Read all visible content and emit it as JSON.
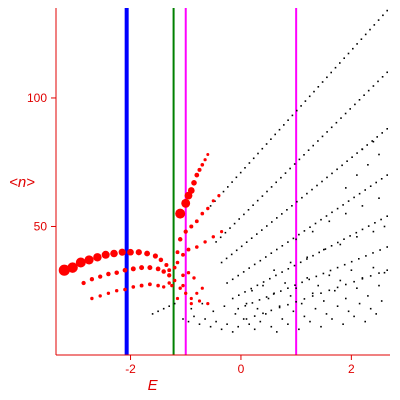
{
  "chart_data": {
    "type": "scatter",
    "title": "",
    "xlabel": "E",
    "ylabel": "<n>",
    "xlim": [
      -3.35,
      2.7
    ],
    "ylim": [
      0,
      135
    ],
    "x_ticks": [
      -2,
      0,
      2
    ],
    "x_tick_labels": [
      "-2",
      "0",
      "2"
    ],
    "y_ticks": [
      50,
      100
    ],
    "y_tick_labels": [
      "50",
      "100"
    ],
    "grid": false,
    "legend": "none",
    "colors": {
      "axes": "#e00000",
      "red_series": "#ff0000",
      "black_series": "#000000"
    },
    "vertical_lines": [
      {
        "x": -2.07,
        "color": "#0000ff"
      },
      {
        "x": -1.22,
        "color": "#008000"
      },
      {
        "x": -1.0,
        "color": "#ff00ff"
      },
      {
        "x": 1.0,
        "color": "#ff00ff"
      }
    ],
    "series": [
      {
        "color": "#ff0000",
        "marker": "circle",
        "points": [
          [
            -3.2,
            33,
            4.5
          ],
          [
            -3.05,
            34,
            4.2
          ],
          [
            -2.9,
            36,
            4.0
          ],
          [
            -2.75,
            37,
            3.6
          ],
          [
            -2.6,
            38,
            3.3
          ],
          [
            -2.45,
            39,
            3.1
          ],
          [
            -2.3,
            39.5,
            2.9
          ],
          [
            -2.15,
            40,
            2.7
          ],
          [
            -2.0,
            40,
            2.5
          ],
          [
            -1.85,
            40,
            2.3
          ],
          [
            -1.7,
            39.5,
            2.1
          ],
          [
            -1.55,
            38.5,
            1.8
          ],
          [
            -1.45,
            37,
            1.5
          ],
          [
            -1.35,
            35,
            1.3
          ],
          [
            -1.3,
            33,
            1.2
          ],
          [
            -2.85,
            28,
            1.4
          ],
          [
            -2.7,
            29.5,
            1.4
          ],
          [
            -2.55,
            30.5,
            1.4
          ],
          [
            -2.4,
            31.5,
            1.5
          ],
          [
            -2.25,
            32,
            1.5
          ],
          [
            -2.1,
            33,
            1.6
          ],
          [
            -1.95,
            33.5,
            1.7
          ],
          [
            -1.8,
            34,
            1.7
          ],
          [
            -1.65,
            34,
            1.7
          ],
          [
            -1.5,
            33.5,
            1.6
          ],
          [
            -1.4,
            32.5,
            1.5
          ],
          [
            -1.3,
            31,
            1.4
          ],
          [
            -2.7,
            22,
            1.0
          ],
          [
            -2.55,
            23,
            1.0
          ],
          [
            -2.4,
            24,
            1.0
          ],
          [
            -2.25,
            25,
            1.0
          ],
          [
            -2.1,
            25.5,
            1.1
          ],
          [
            -1.95,
            26.5,
            1.1
          ],
          [
            -1.8,
            27,
            1.2
          ],
          [
            -1.65,
            27.5,
            1.2
          ],
          [
            -1.5,
            27,
            1.1
          ],
          [
            -1.4,
            26.5,
            1.0
          ],
          [
            -1.1,
            55,
            4.0
          ],
          [
            -1.0,
            59,
            3.5
          ],
          [
            -0.95,
            62,
            3.0
          ],
          [
            -0.9,
            64,
            2.5
          ],
          [
            -0.85,
            67,
            2.0
          ],
          [
            -0.8,
            70,
            1.6
          ],
          [
            -0.75,
            72,
            1.3
          ],
          [
            -0.7,
            74,
            1.1
          ],
          [
            -0.65,
            76,
            0.9
          ],
          [
            -0.6,
            78,
            0.8
          ],
          [
            -1.1,
            45,
            1.5
          ],
          [
            -1.0,
            48,
            1.4
          ],
          [
            -0.9,
            50,
            1.3
          ],
          [
            -0.8,
            52,
            1.2
          ],
          [
            -0.7,
            55,
            1.1
          ],
          [
            -0.6,
            57,
            1.0
          ],
          [
            -0.5,
            60,
            0.9
          ],
          [
            -0.4,
            62,
            0.9
          ],
          [
            -1.05,
            39,
            1.2
          ],
          [
            -0.95,
            41,
            1.2
          ],
          [
            -0.8,
            42,
            1.1
          ],
          [
            -0.65,
            44,
            1.0
          ],
          [
            -0.5,
            46,
            1.0
          ],
          [
            -0.35,
            48,
            0.9
          ],
          [
            -1.15,
            40,
            1.2
          ],
          [
            -1.15,
            36,
            1.1
          ],
          [
            -1.2,
            34,
            1.1
          ],
          [
            -1.1,
            26,
            1.0
          ],
          [
            -1.0,
            24,
            1.0
          ],
          [
            -0.9,
            22,
            0.9
          ],
          [
            -0.8,
            24,
            0.9
          ],
          [
            -0.7,
            26,
            0.9
          ],
          [
            -0.95,
            32,
            1.0
          ],
          [
            -0.85,
            30,
            1.0
          ],
          [
            -1.05,
            31,
            1.1
          ],
          [
            -0.9,
            20,
            0.9
          ],
          [
            -0.75,
            21,
            0.9
          ],
          [
            -0.6,
            20,
            0.9
          ],
          [
            -1.05,
            27,
            1.0
          ],
          [
            -1.3,
            28,
            1.0
          ],
          [
            -1.25,
            27,
            1.0
          ],
          [
            -1.2,
            29,
            1.0
          ],
          [
            -1.15,
            22,
            0.9
          ]
        ]
      },
      {
        "color": "#000000",
        "marker": "dot",
        "families": [
          {
            "x_start": -0.55,
            "x_end": 2.65,
            "y_start": 58,
            "y_end": 134,
            "n": 42
          },
          {
            "x_start": -0.45,
            "x_end": 2.65,
            "y_start": 44,
            "y_end": 110,
            "n": 38
          },
          {
            "x_start": -0.35,
            "x_end": 2.65,
            "y_start": 36,
            "y_end": 88,
            "n": 34
          },
          {
            "x_start": -0.25,
            "x_end": 2.65,
            "y_start": 28,
            "y_end": 70,
            "n": 30
          },
          {
            "x_start": -0.15,
            "x_end": 2.65,
            "y_start": 22,
            "y_end": 54,
            "n": 26
          },
          {
            "x_start": -0.05,
            "x_end": 2.65,
            "y_start": 18,
            "y_end": 42,
            "n": 22
          },
          {
            "x_start": 0.1,
            "x_end": 2.65,
            "y_start": 14,
            "y_end": 33,
            "n": 18
          }
        ],
        "points": [
          [
            -1.6,
            16
          ],
          [
            -1.5,
            17
          ],
          [
            -1.4,
            18
          ],
          [
            -1.3,
            19
          ],
          [
            -1.2,
            20
          ],
          [
            -1.05,
            14
          ],
          [
            -0.95,
            13
          ],
          [
            -0.85,
            15
          ],
          [
            -0.75,
            12
          ],
          [
            -0.65,
            14
          ],
          [
            -0.55,
            11
          ],
          [
            -0.45,
            13
          ],
          [
            -0.35,
            10
          ],
          [
            -0.25,
            12
          ],
          [
            -0.15,
            9
          ],
          [
            -0.05,
            11
          ],
          [
            0.05,
            14
          ],
          [
            0.15,
            12
          ],
          [
            0.25,
            10
          ],
          [
            0.35,
            13
          ],
          [
            0.45,
            16
          ],
          [
            0.55,
            11
          ],
          [
            0.65,
            9
          ],
          [
            0.75,
            14
          ],
          [
            0.85,
            12
          ],
          [
            0.95,
            17
          ],
          [
            1.05,
            10
          ],
          [
            1.15,
            15
          ],
          [
            1.25,
            13
          ],
          [
            1.35,
            18
          ],
          [
            1.45,
            11
          ],
          [
            1.55,
            16
          ],
          [
            1.65,
            14
          ],
          [
            1.75,
            19
          ],
          [
            1.85,
            12
          ],
          [
            1.95,
            17
          ],
          [
            2.05,
            15
          ],
          [
            2.15,
            20
          ],
          [
            2.25,
            13
          ],
          [
            2.35,
            18
          ],
          [
            2.45,
            16
          ],
          [
            2.55,
            21
          ],
          [
            -0.9,
            18
          ],
          [
            -0.7,
            20
          ],
          [
            -0.5,
            17
          ],
          [
            -0.3,
            19
          ],
          [
            -0.1,
            16
          ],
          [
            0.1,
            20
          ],
          [
            0.3,
            18
          ],
          [
            0.5,
            22
          ],
          [
            0.7,
            19
          ],
          [
            0.9,
            23
          ],
          [
            1.1,
            20
          ],
          [
            1.3,
            24
          ],
          [
            1.5,
            21
          ],
          [
            1.7,
            25
          ],
          [
            1.9,
            22
          ],
          [
            2.1,
            26
          ],
          [
            2.3,
            23
          ],
          [
            2.5,
            27
          ],
          [
            0.2,
            25
          ],
          [
            0.4,
            27
          ],
          [
            0.6,
            24
          ],
          [
            0.8,
            28
          ],
          [
            1.0,
            26
          ],
          [
            1.2,
            30
          ],
          [
            1.4,
            27
          ],
          [
            1.6,
            31
          ],
          [
            1.8,
            29
          ],
          [
            2.0,
            33
          ],
          [
            2.2,
            30
          ],
          [
            2.4,
            34
          ],
          [
            2.6,
            32
          ],
          [
            0.6,
            33
          ],
          [
            0.9,
            36
          ],
          [
            1.2,
            38
          ],
          [
            1.5,
            41
          ],
          [
            1.8,
            43
          ],
          [
            2.1,
            46
          ],
          [
            2.4,
            48
          ],
          [
            2.6,
            50
          ],
          [
            1.0,
            45
          ],
          [
            1.3,
            48
          ],
          [
            1.6,
            52
          ],
          [
            1.9,
            55
          ],
          [
            2.2,
            58
          ],
          [
            2.5,
            61
          ],
          [
            1.9,
            65
          ],
          [
            2.1,
            70
          ],
          [
            2.3,
            74
          ],
          [
            2.5,
            78
          ],
          [
            2.2,
            80
          ],
          [
            2.4,
            83
          ]
        ]
      }
    ]
  }
}
